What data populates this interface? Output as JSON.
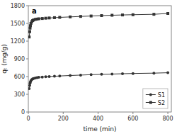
{
  "chart_data": {
    "type": "line",
    "title": "a",
    "xlabel": "time (min)",
    "ylabel": "qₜ (mg/g)",
    "x": [
      5,
      8,
      10,
      12,
      15,
      20,
      25,
      30,
      40,
      50,
      60,
      80,
      100,
      120,
      150,
      180,
      240,
      300,
      360,
      420,
      480,
      540,
      600,
      720,
      800
    ],
    "series": [
      {
        "name": "S1",
        "color": "#333333",
        "marker": "circle",
        "line_style": "solid",
        "values": [
          395,
          450,
          490,
          510,
          530,
          548,
          560,
          568,
          576,
          582,
          587,
          592,
          597,
          601,
          605,
          610,
          618,
          625,
          632,
          638,
          643,
          648,
          652,
          658,
          665
        ]
      },
      {
        "name": "S2",
        "color": "#333333",
        "marker": "square",
        "line_style": "solid",
        "values": [
          1270,
          1360,
          1420,
          1460,
          1500,
          1530,
          1548,
          1558,
          1568,
          1573,
          1578,
          1583,
          1588,
          1592,
          1597,
          1602,
          1610,
          1618,
          1625,
          1632,
          1638,
          1643,
          1647,
          1654,
          1668
        ]
      }
    ],
    "xlim": [
      0,
      820
    ],
    "xticks": [
      0,
      200,
      400,
      600,
      800
    ],
    "ylim": [
      0,
      1800
    ],
    "yticks": [
      0,
      300,
      600,
      900,
      1200,
      1500,
      1800
    ],
    "grid": false,
    "legend": "lower right"
  }
}
